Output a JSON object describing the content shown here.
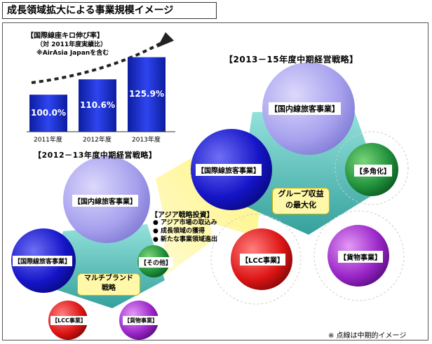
{
  "title": "成長領域拡大による事業規模イメージ",
  "chart": {
    "heading": "【国際線座キロ伸び率】",
    "note1": "（対 2011年度実績比）",
    "note2": "※AirAsia Japanを含む"
  },
  "chart_data": {
    "type": "bar",
    "categories": [
      "2011年度",
      "2012年度",
      "2013年度"
    ],
    "values": [
      100.0,
      110.6,
      125.9
    ],
    "value_labels": [
      "100.0%",
      "110.6%",
      "125.9%"
    ],
    "title": "【国際線座キロ伸び率】",
    "xlabel": "",
    "ylabel": "",
    "colors": {
      "bar": "#1a2fd6"
    }
  },
  "plan_2012": {
    "title": "【2012－13年度中期経営戦略】",
    "domestic": "【国内線旅客事業】",
    "international": "【国際線旅客事業】",
    "other": "【その他】",
    "lcc": "【LCC事業】",
    "cargo": "【貨物事業】",
    "center": "マルチブランド\n戦略"
  },
  "asia": {
    "heading": "【アジア戦略投資】",
    "bullets": [
      "アジア市場の取込み",
      "成長領域の獲得",
      "新たな事業領域進出"
    ]
  },
  "plan_2013": {
    "title": "【2013－15年度中期経営戦略】",
    "domestic": "【国内線旅客事業】",
    "international": "【国際線旅客事業】",
    "diversify": "【多角化】",
    "lcc": "【LCC事業】",
    "cargo": "【貨物事業】",
    "center": "グループ収益\nの最大化"
  },
  "footnote": "※ 点線は中期的イメージ",
  "colors": {
    "blue": "#1b1bd9",
    "lavender": "#a9a3f0",
    "green": "#22a045",
    "red": "#e01b1b",
    "purple": "#9c27c9",
    "teal": "#48b9b3",
    "yellow": "#fff070"
  }
}
